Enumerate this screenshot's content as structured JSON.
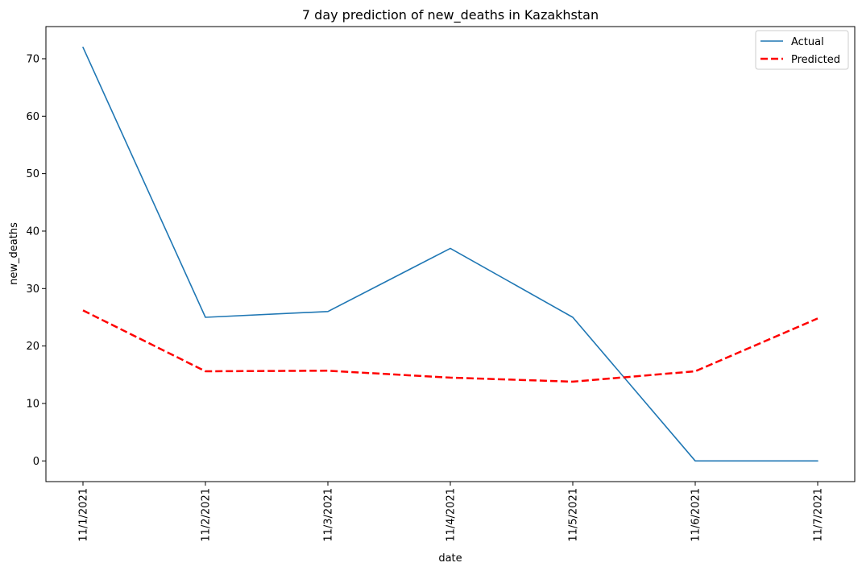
{
  "chart_data": {
    "type": "line",
    "title": "7 day prediction of new_deaths in Kazakhstan",
    "xlabel": "date",
    "ylabel": "new_deaths",
    "categories": [
      "11/1/2021",
      "11/2/2021",
      "11/3/2021",
      "11/4/2021",
      "11/5/2021",
      "11/6/2021",
      "11/7/2021"
    ],
    "ylim": [
      -3.6,
      75.6
    ],
    "yticks": [
      0,
      10,
      20,
      30,
      40,
      50,
      60,
      70
    ],
    "grid": false,
    "legend_position": "top-right",
    "series": [
      {
        "name": "Actual",
        "values": [
          72,
          25,
          26,
          37,
          25,
          0,
          0
        ],
        "color": "#1f77b4",
        "style": "solid"
      },
      {
        "name": "Predicted",
        "values": [
          26.2,
          15.6,
          15.7,
          14.5,
          13.8,
          15.6,
          24.8
        ],
        "color": "#ff0000",
        "style": "dashed"
      }
    ]
  }
}
